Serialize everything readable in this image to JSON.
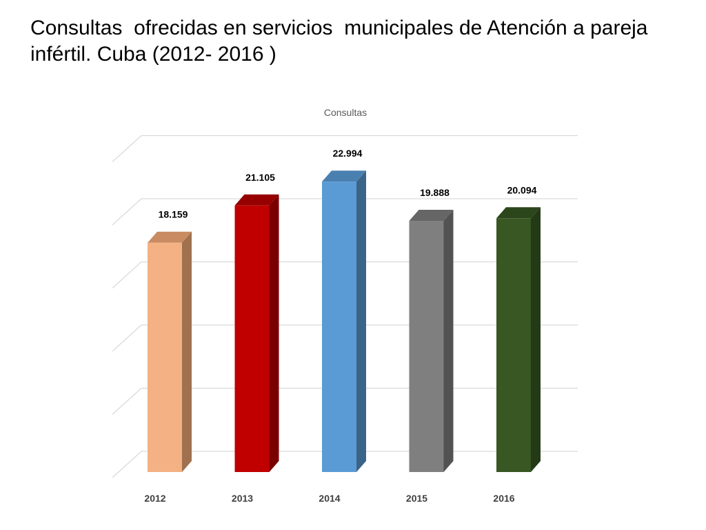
{
  "slide": {
    "title": "Consultas  ofrecidas en servicios  municipales de Atención a pareja  infértil. Cuba (2012- 2016 )"
  },
  "chart_data": {
    "type": "bar",
    "title": "Consultas",
    "categories": [
      "2012",
      "2013",
      "2014",
      "2015",
      "2016"
    ],
    "values": [
      18.159,
      21.105,
      22.994,
      19.888,
      20.094
    ],
    "labels": [
      "18.159",
      "21.105",
      "22.994",
      "19.888",
      "20.094"
    ],
    "ylim": [
      0,
      25
    ],
    "y_gridlines": [
      0,
      5,
      10,
      15,
      20,
      25
    ],
    "y_tick_labels_shown": false,
    "grid": true,
    "legend": "none",
    "style": "3d-column",
    "colors": [
      {
        "front": "#f4b183",
        "side": "#a0714f",
        "top": "#c88b62"
      },
      {
        "front": "#c00000",
        "side": "#7a0000",
        "top": "#960000"
      },
      {
        "front": "#5b9bd5",
        "side": "#3a6488",
        "top": "#4a80b0"
      },
      {
        "front": "#7f7f7f",
        "side": "#525252",
        "top": "#666666"
      },
      {
        "front": "#385723",
        "side": "#243a16",
        "top": "#2c461b"
      }
    ]
  }
}
